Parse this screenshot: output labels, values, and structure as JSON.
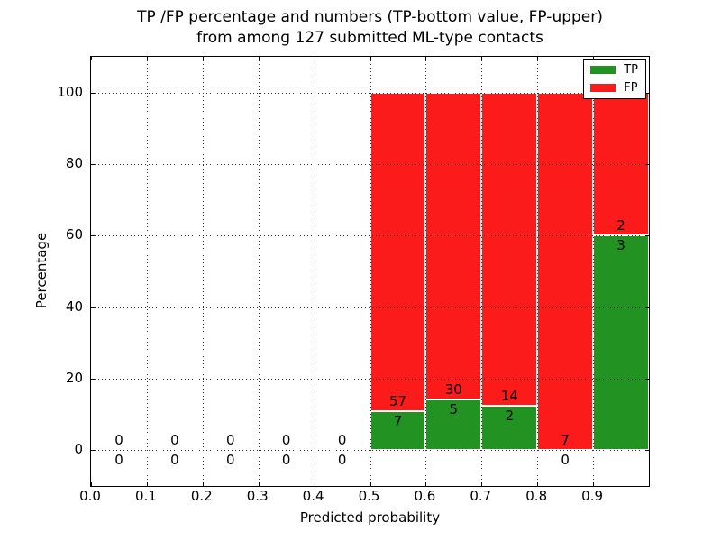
{
  "chart_data": {
    "type": "bar",
    "stacked": true,
    "title_lines": [
      "TP /FP percentage and numbers (TP-bottom value, FP-upper)",
      "from among 127 submitted ML-type contacts"
    ],
    "xlabel": "Predicted probability",
    "ylabel": "Percentage",
    "xlim": [
      0.0,
      1.0
    ],
    "ylim": [
      -10,
      110
    ],
    "grid": true,
    "legend_position": "upper right",
    "x_ticks": [
      {
        "value": 0.0,
        "label": "0.0"
      },
      {
        "value": 0.1,
        "label": "0.1"
      },
      {
        "value": 0.2,
        "label": "0.2"
      },
      {
        "value": 0.3,
        "label": "0.3"
      },
      {
        "value": 0.4,
        "label": "0.4"
      },
      {
        "value": 0.5,
        "label": "0.5"
      },
      {
        "value": 0.6,
        "label": "0.6"
      },
      {
        "value": 0.7,
        "label": "0.7"
      },
      {
        "value": 0.8,
        "label": "0.8"
      },
      {
        "value": 0.9,
        "label": "0.9"
      }
    ],
    "y_ticks": [
      {
        "value": 0,
        "label": "0"
      },
      {
        "value": 20,
        "label": "20"
      },
      {
        "value": 40,
        "label": "40"
      },
      {
        "value": 60,
        "label": "60"
      },
      {
        "value": 80,
        "label": "80"
      },
      {
        "value": 100,
        "label": "100"
      }
    ],
    "series": [
      {
        "name": "TP",
        "color": "#229222"
      },
      {
        "name": "FP",
        "color": "#fb1b1b"
      }
    ],
    "bins": [
      {
        "range": [
          0.0,
          0.1
        ],
        "tp": 0,
        "fp": 0
      },
      {
        "range": [
          0.1,
          0.2
        ],
        "tp": 0,
        "fp": 0
      },
      {
        "range": [
          0.2,
          0.3
        ],
        "tp": 0,
        "fp": 0
      },
      {
        "range": [
          0.3,
          0.4
        ],
        "tp": 0,
        "fp": 0
      },
      {
        "range": [
          0.4,
          0.5
        ],
        "tp": 0,
        "fp": 0
      },
      {
        "range": [
          0.5,
          0.6
        ],
        "tp": 7,
        "fp": 57
      },
      {
        "range": [
          0.6,
          0.7
        ],
        "tp": 5,
        "fp": 30
      },
      {
        "range": [
          0.7,
          0.8
        ],
        "tp": 2,
        "fp": 14
      },
      {
        "range": [
          0.8,
          0.9
        ],
        "tp": 0,
        "fp": 7
      },
      {
        "range": [
          0.9,
          1.0
        ],
        "tp": 3,
        "fp": 2
      }
    ],
    "bar_value_unit": "percent of bin total (stacked to 100%)",
    "total_contacts": 127
  },
  "style": {
    "grid_color": "#2e2e2e",
    "text_color": "#000000",
    "background": "#ffffff"
  }
}
